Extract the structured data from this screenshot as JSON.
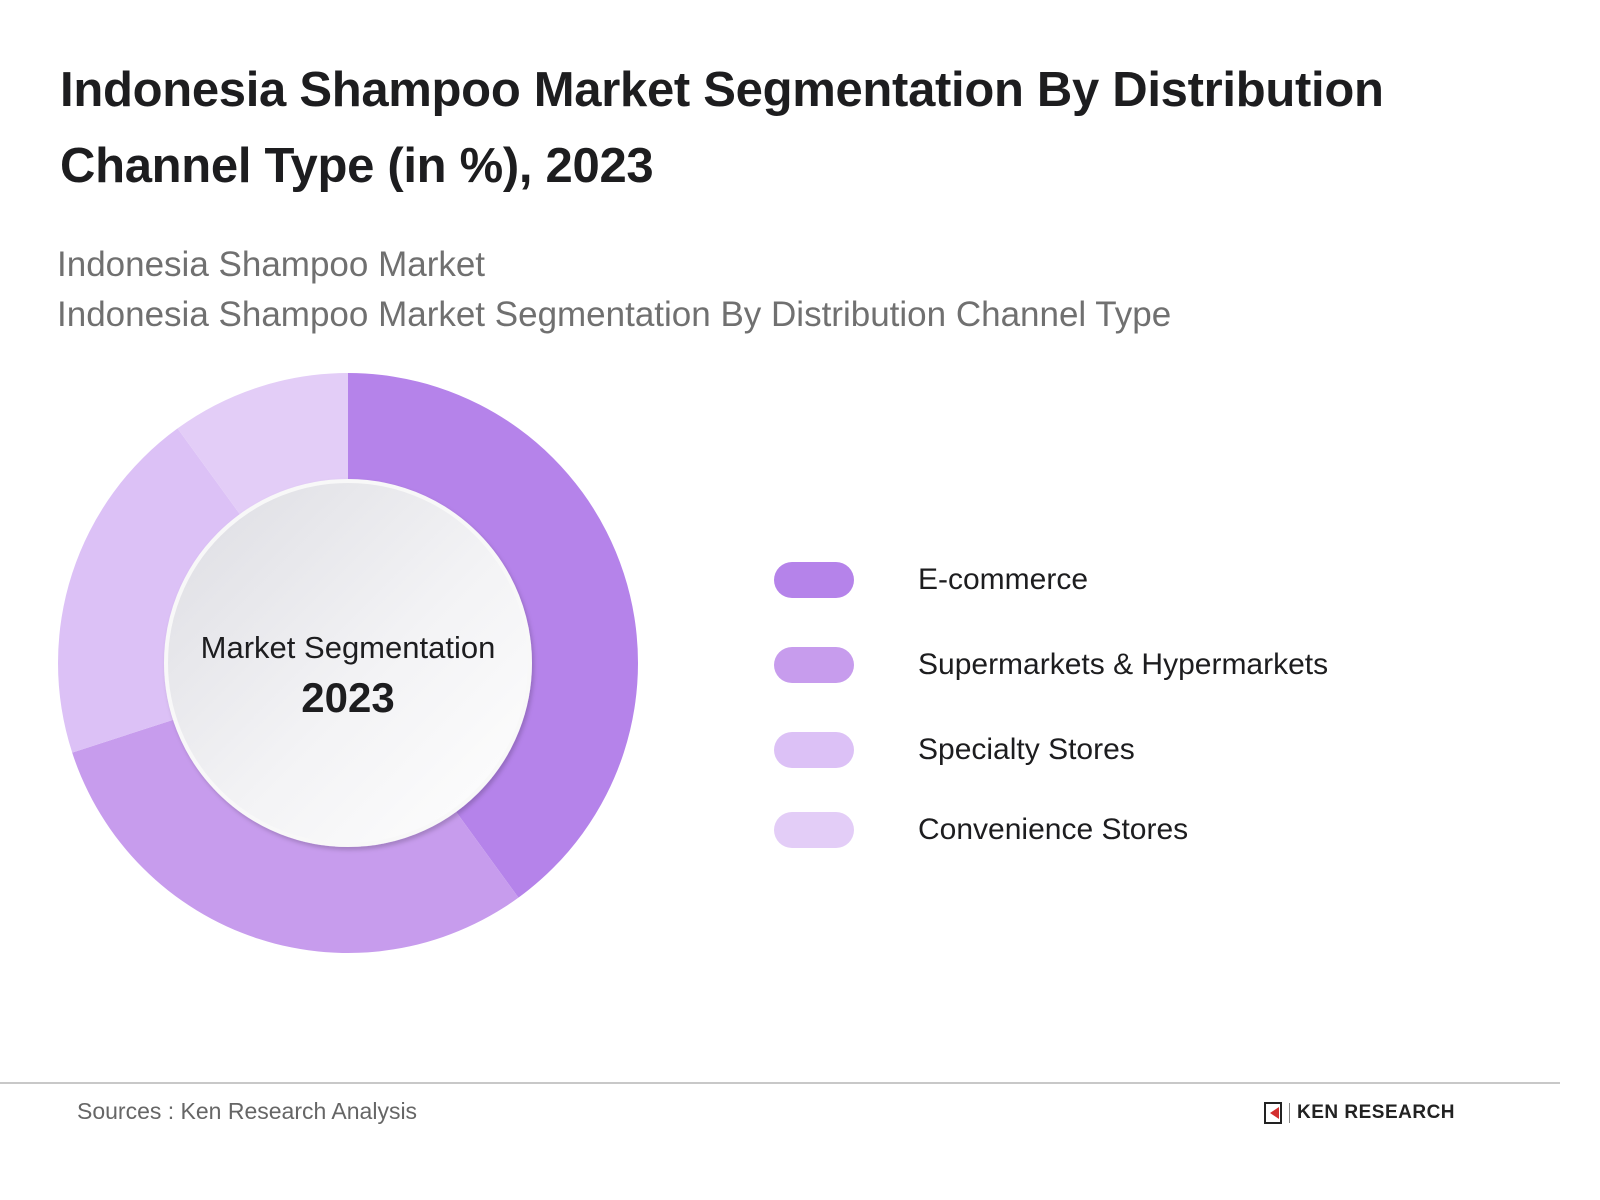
{
  "header": {
    "title": "Indonesia Shampoo Market Segmentation By Distribution Channel Type (in %), 2023",
    "subtitle_line1": "Indonesia Shampoo Market",
    "subtitle_line2": "Indonesia Shampoo Market Segmentation By Distribution Channel Type"
  },
  "center": {
    "label": "Market Segmentation",
    "year": "2023"
  },
  "legend": [
    {
      "label": "E-commerce",
      "color": "#b583ea"
    },
    {
      "label": "Supermarkets & Hypermarkets",
      "color": "#c79ced"
    },
    {
      "label": "Specialty Stores",
      "color": "#dcc1f6"
    },
    {
      "label": "Convenience Stores",
      "color": "#e3cdf7"
    }
  ],
  "footer": {
    "source": "Sources : Ken Research Analysis",
    "logo_text": "KEN RESEARCH"
  },
  "chart_data": {
    "type": "pie",
    "subtype": "donut",
    "title": "Indonesia Shampoo Market Segmentation By Distribution Channel Type (in %), 2023",
    "categories": [
      "E-commerce",
      "Supermarkets & Hypermarkets",
      "Specialty Stores",
      "Convenience Stores"
    ],
    "values": [
      40,
      30,
      20,
      10
    ],
    "colors": [
      "#b583ea",
      "#c79ced",
      "#dcc1f6",
      "#e3cdf7"
    ],
    "center_text": [
      "Market Segmentation",
      "2023"
    ],
    "legend_position": "right",
    "unit": "%"
  }
}
